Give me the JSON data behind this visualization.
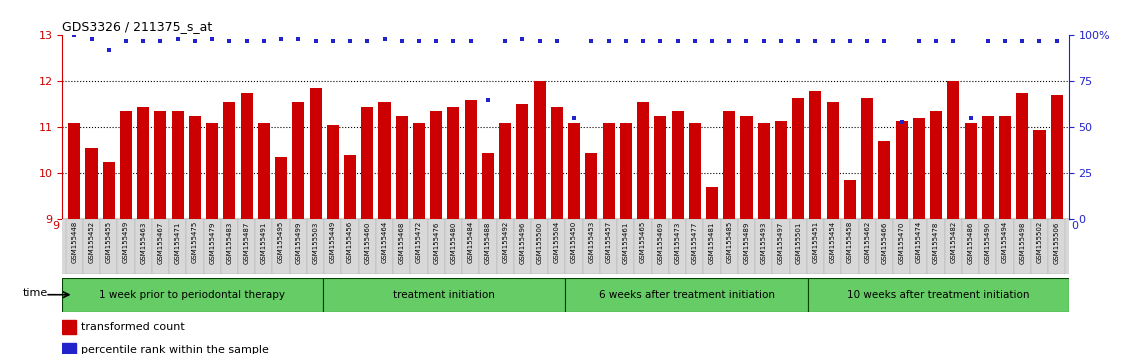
{
  "title": "GDS3326 / 211375_s_at",
  "ylim_left": [
    9,
    13
  ],
  "ylim_right": [
    0,
    100
  ],
  "yticks_left": [
    9,
    10,
    11,
    12,
    13
  ],
  "yticks_right": [
    0,
    25,
    50,
    75,
    100
  ],
  "ytick_dotted": [
    10,
    11,
    12
  ],
  "bar_color": "#cc0000",
  "dot_color": "#2222cc",
  "bar_bottom": 9,
  "categories": [
    "GSM155448",
    "GSM155452",
    "GSM155455",
    "GSM155459",
    "GSM155463",
    "GSM155467",
    "GSM155471",
    "GSM155475",
    "GSM155479",
    "GSM155483",
    "GSM155487",
    "GSM155491",
    "GSM155495",
    "GSM155499",
    "GSM155503",
    "GSM155449",
    "GSM155456",
    "GSM155460",
    "GSM155464",
    "GSM155468",
    "GSM155472",
    "GSM155476",
    "GSM155480",
    "GSM155484",
    "GSM155488",
    "GSM155492",
    "GSM155496",
    "GSM155500",
    "GSM155504",
    "GSM155450",
    "GSM155453",
    "GSM155457",
    "GSM155461",
    "GSM155465",
    "GSM155469",
    "GSM155473",
    "GSM155477",
    "GSM155481",
    "GSM155485",
    "GSM155489",
    "GSM155493",
    "GSM155497",
    "GSM155501",
    "GSM155451",
    "GSM155454",
    "GSM155458",
    "GSM155462",
    "GSM155466",
    "GSM155470",
    "GSM155474",
    "GSM155478",
    "GSM155482",
    "GSM155486",
    "GSM155490",
    "GSM155494",
    "GSM155498",
    "GSM155502",
    "GSM155506"
  ],
  "bar_heights": [
    11.1,
    10.55,
    10.25,
    11.35,
    11.45,
    11.35,
    11.35,
    11.25,
    11.1,
    11.55,
    11.75,
    11.1,
    10.35,
    11.55,
    11.85,
    11.05,
    10.4,
    11.45,
    11.55,
    11.25,
    11.1,
    11.35,
    11.45,
    11.6,
    10.45,
    11.1,
    11.5,
    12.0,
    11.45,
    11.1,
    10.45,
    11.1,
    11.1,
    11.55,
    11.25,
    11.35,
    11.1,
    9.7,
    11.35,
    11.25,
    11.1,
    11.15,
    11.65,
    11.8,
    11.55,
    9.85,
    11.65,
    10.7,
    11.15,
    11.2,
    11.35,
    12.0,
    11.1,
    11.25,
    11.25,
    11.75,
    10.95,
    11.7
  ],
  "dot_values": [
    100,
    98,
    92,
    97,
    97,
    97,
    98,
    97,
    98,
    97,
    97,
    97,
    98,
    98,
    97,
    97,
    97,
    97,
    98,
    97,
    97,
    97,
    97,
    97,
    65,
    97,
    98,
    97,
    97,
    55,
    97,
    97,
    97,
    97,
    97,
    97,
    97,
    97,
    97,
    97,
    97,
    97,
    97,
    97,
    97,
    97,
    97,
    97,
    53,
    97,
    97,
    97,
    55,
    97,
    97,
    97,
    97,
    97
  ],
  "groups": [
    {
      "label": "1 week prior to periodontal therapy",
      "start": 0,
      "end": 14
    },
    {
      "label": "treatment initiation",
      "start": 15,
      "end": 28
    },
    {
      "label": "6 weeks after treatment initiation",
      "start": 29,
      "end": 42
    },
    {
      "label": "10 weeks after treatment initiation",
      "start": 43,
      "end": 57
    }
  ],
  "group_color": "#66cc66",
  "group_sep_color": "#006600",
  "time_label": "time",
  "legend_bar_label": "transformed count",
  "legend_dot_label": "percentile rank within the sample",
  "axis_color_left": "#cc0000",
  "axis_color_right": "#2222cc",
  "xtick_bg": "#d8d8d8"
}
